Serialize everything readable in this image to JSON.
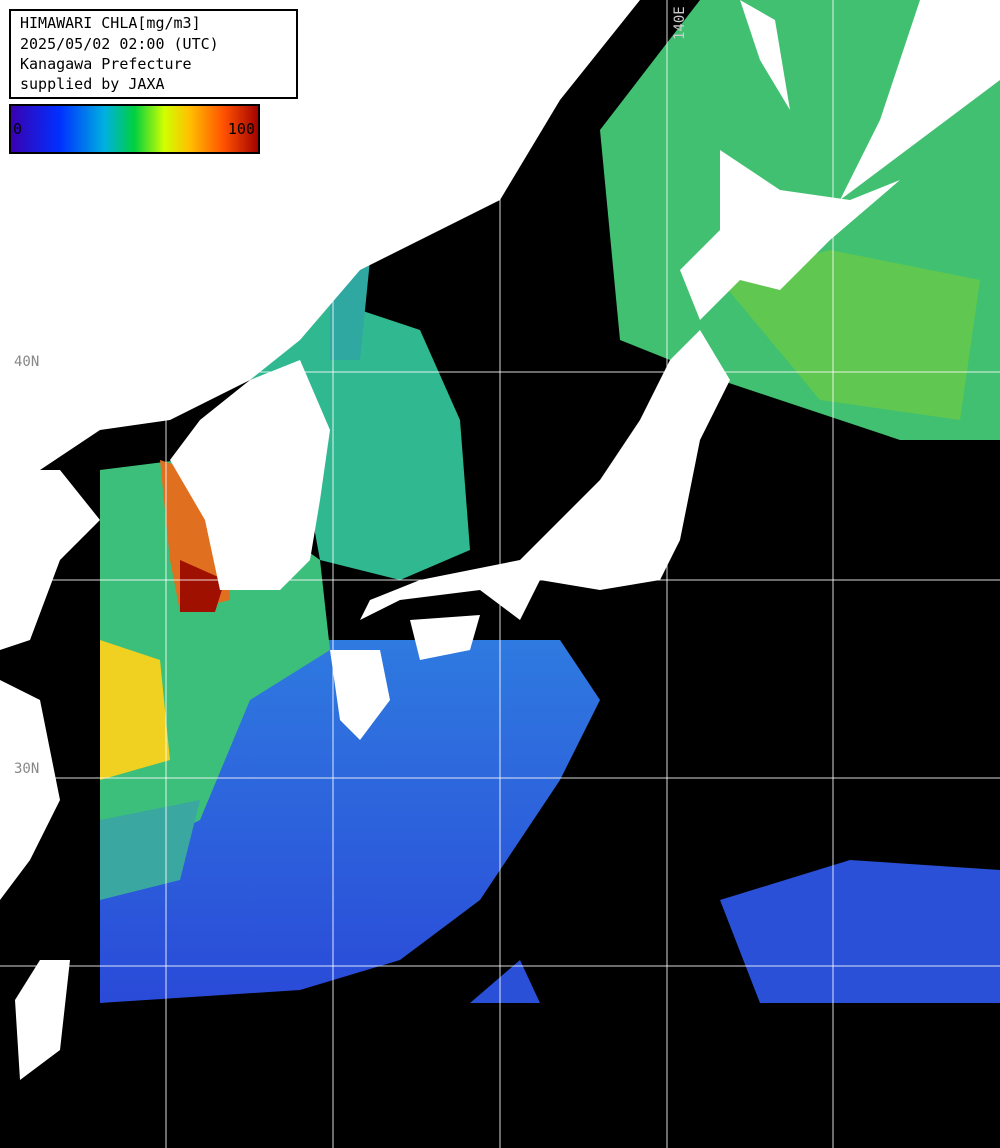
{
  "header": {
    "lines": [
      "HIMAWARI CHLA[mg/m3]",
      "2025/05/02 02:00 (UTC)",
      "Kanagawa Prefecture",
      "supplied by JAXA"
    ]
  },
  "colorbar": {
    "min": 0,
    "max": 100
  },
  "graticule": {
    "lat_labels": [
      "40N",
      "30N"
    ],
    "lon_labels": [
      "140E"
    ]
  }
}
